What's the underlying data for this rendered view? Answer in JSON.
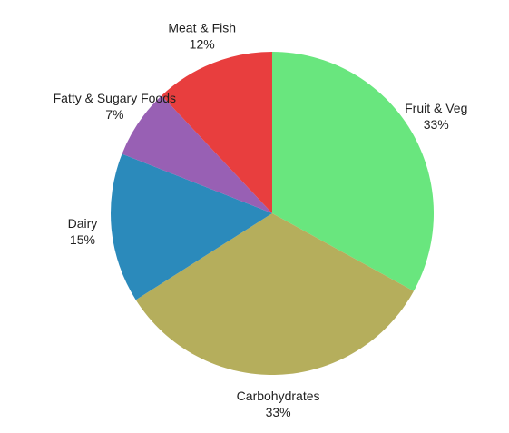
{
  "chart_data": {
    "type": "pie",
    "start_angle_deg": 0,
    "direction": "clockwise",
    "slices": [
      {
        "name": "Fruit & Veg",
        "value": 33,
        "label": "33%",
        "color": "#69e67e"
      },
      {
        "name": "Carbohydrates",
        "value": 33,
        "label": "33%",
        "color": "#b5ae5c"
      },
      {
        "name": "Dairy",
        "value": 15,
        "label": "15%",
        "color": "#2b8abb"
      },
      {
        "name": "Fatty & Sugary Foods",
        "value": 7,
        "label": "7%",
        "color": "#9860b4"
      },
      {
        "name": "Meat & Fish",
        "value": 12,
        "label": "12%",
        "color": "#e83e3e"
      }
    ]
  }
}
